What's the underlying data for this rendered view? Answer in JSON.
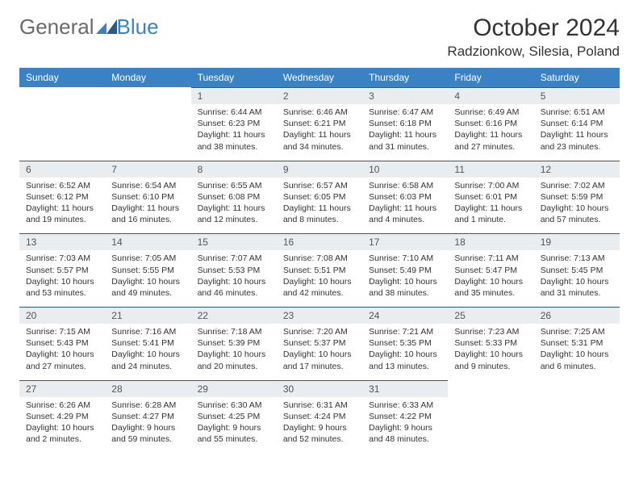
{
  "logo": {
    "text1": "General",
    "text2": "Blue"
  },
  "title": "October 2024",
  "location": "Radzionkow, Silesia, Poland",
  "colors": {
    "header_bg": "#3B82C4",
    "header_text": "#ffffff",
    "num_bg": "#e9edf0",
    "num_border": "#2a5a8a",
    "body_bg": "#ffffff",
    "text": "#333333",
    "logo_gray": "#6a6a6a",
    "logo_blue": "#3B82C4"
  },
  "weekdays": [
    "Sunday",
    "Monday",
    "Tuesday",
    "Wednesday",
    "Thursday",
    "Friday",
    "Saturday"
  ],
  "weeks": [
    [
      null,
      null,
      {
        "n": "1",
        "sr": "Sunrise: 6:44 AM",
        "ss": "Sunset: 6:23 PM",
        "dl": "Daylight: 11 hours and 38 minutes."
      },
      {
        "n": "2",
        "sr": "Sunrise: 6:46 AM",
        "ss": "Sunset: 6:21 PM",
        "dl": "Daylight: 11 hours and 34 minutes."
      },
      {
        "n": "3",
        "sr": "Sunrise: 6:47 AM",
        "ss": "Sunset: 6:18 PM",
        "dl": "Daylight: 11 hours and 31 minutes."
      },
      {
        "n": "4",
        "sr": "Sunrise: 6:49 AM",
        "ss": "Sunset: 6:16 PM",
        "dl": "Daylight: 11 hours and 27 minutes."
      },
      {
        "n": "5",
        "sr": "Sunrise: 6:51 AM",
        "ss": "Sunset: 6:14 PM",
        "dl": "Daylight: 11 hours and 23 minutes."
      }
    ],
    [
      {
        "n": "6",
        "sr": "Sunrise: 6:52 AM",
        "ss": "Sunset: 6:12 PM",
        "dl": "Daylight: 11 hours and 19 minutes."
      },
      {
        "n": "7",
        "sr": "Sunrise: 6:54 AM",
        "ss": "Sunset: 6:10 PM",
        "dl": "Daylight: 11 hours and 16 minutes."
      },
      {
        "n": "8",
        "sr": "Sunrise: 6:55 AM",
        "ss": "Sunset: 6:08 PM",
        "dl": "Daylight: 11 hours and 12 minutes."
      },
      {
        "n": "9",
        "sr": "Sunrise: 6:57 AM",
        "ss": "Sunset: 6:05 PM",
        "dl": "Daylight: 11 hours and 8 minutes."
      },
      {
        "n": "10",
        "sr": "Sunrise: 6:58 AM",
        "ss": "Sunset: 6:03 PM",
        "dl": "Daylight: 11 hours and 4 minutes."
      },
      {
        "n": "11",
        "sr": "Sunrise: 7:00 AM",
        "ss": "Sunset: 6:01 PM",
        "dl": "Daylight: 11 hours and 1 minute."
      },
      {
        "n": "12",
        "sr": "Sunrise: 7:02 AM",
        "ss": "Sunset: 5:59 PM",
        "dl": "Daylight: 10 hours and 57 minutes."
      }
    ],
    [
      {
        "n": "13",
        "sr": "Sunrise: 7:03 AM",
        "ss": "Sunset: 5:57 PM",
        "dl": "Daylight: 10 hours and 53 minutes."
      },
      {
        "n": "14",
        "sr": "Sunrise: 7:05 AM",
        "ss": "Sunset: 5:55 PM",
        "dl": "Daylight: 10 hours and 49 minutes."
      },
      {
        "n": "15",
        "sr": "Sunrise: 7:07 AM",
        "ss": "Sunset: 5:53 PM",
        "dl": "Daylight: 10 hours and 46 minutes."
      },
      {
        "n": "16",
        "sr": "Sunrise: 7:08 AM",
        "ss": "Sunset: 5:51 PM",
        "dl": "Daylight: 10 hours and 42 minutes."
      },
      {
        "n": "17",
        "sr": "Sunrise: 7:10 AM",
        "ss": "Sunset: 5:49 PM",
        "dl": "Daylight: 10 hours and 38 minutes."
      },
      {
        "n": "18",
        "sr": "Sunrise: 7:11 AM",
        "ss": "Sunset: 5:47 PM",
        "dl": "Daylight: 10 hours and 35 minutes."
      },
      {
        "n": "19",
        "sr": "Sunrise: 7:13 AM",
        "ss": "Sunset: 5:45 PM",
        "dl": "Daylight: 10 hours and 31 minutes."
      }
    ],
    [
      {
        "n": "20",
        "sr": "Sunrise: 7:15 AM",
        "ss": "Sunset: 5:43 PM",
        "dl": "Daylight: 10 hours and 27 minutes."
      },
      {
        "n": "21",
        "sr": "Sunrise: 7:16 AM",
        "ss": "Sunset: 5:41 PM",
        "dl": "Daylight: 10 hours and 24 minutes."
      },
      {
        "n": "22",
        "sr": "Sunrise: 7:18 AM",
        "ss": "Sunset: 5:39 PM",
        "dl": "Daylight: 10 hours and 20 minutes."
      },
      {
        "n": "23",
        "sr": "Sunrise: 7:20 AM",
        "ss": "Sunset: 5:37 PM",
        "dl": "Daylight: 10 hours and 17 minutes."
      },
      {
        "n": "24",
        "sr": "Sunrise: 7:21 AM",
        "ss": "Sunset: 5:35 PM",
        "dl": "Daylight: 10 hours and 13 minutes."
      },
      {
        "n": "25",
        "sr": "Sunrise: 7:23 AM",
        "ss": "Sunset: 5:33 PM",
        "dl": "Daylight: 10 hours and 9 minutes."
      },
      {
        "n": "26",
        "sr": "Sunrise: 7:25 AM",
        "ss": "Sunset: 5:31 PM",
        "dl": "Daylight: 10 hours and 6 minutes."
      }
    ],
    [
      {
        "n": "27",
        "sr": "Sunrise: 6:26 AM",
        "ss": "Sunset: 4:29 PM",
        "dl": "Daylight: 10 hours and 2 minutes."
      },
      {
        "n": "28",
        "sr": "Sunrise: 6:28 AM",
        "ss": "Sunset: 4:27 PM",
        "dl": "Daylight: 9 hours and 59 minutes."
      },
      {
        "n": "29",
        "sr": "Sunrise: 6:30 AM",
        "ss": "Sunset: 4:25 PM",
        "dl": "Daylight: 9 hours and 55 minutes."
      },
      {
        "n": "30",
        "sr": "Sunrise: 6:31 AM",
        "ss": "Sunset: 4:24 PM",
        "dl": "Daylight: 9 hours and 52 minutes."
      },
      {
        "n": "31",
        "sr": "Sunrise: 6:33 AM",
        "ss": "Sunset: 4:22 PM",
        "dl": "Daylight: 9 hours and 48 minutes."
      },
      null,
      null
    ]
  ]
}
